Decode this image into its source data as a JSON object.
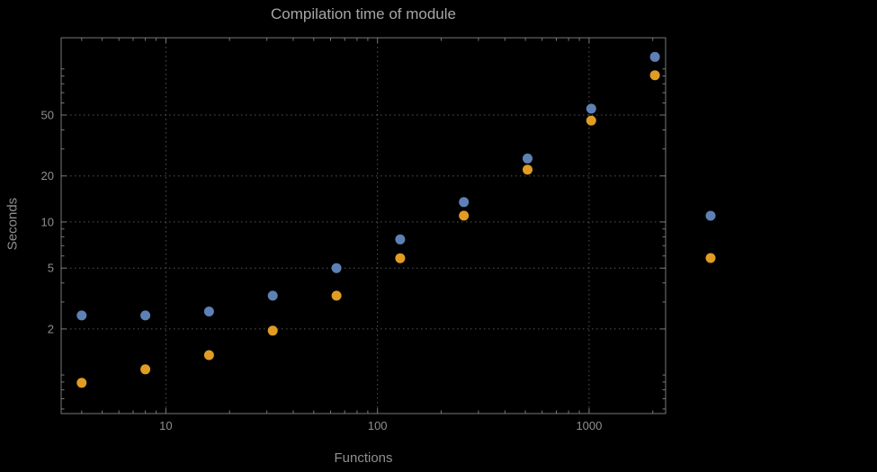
{
  "chart_data": {
    "type": "scatter",
    "title": "Compilation time of module",
    "xlabel": "Functions",
    "ylabel": "Seconds",
    "xscale": "log",
    "yscale": "log",
    "xlim": [
      3.2,
      2300
    ],
    "ylim": [
      0.56,
      160
    ],
    "x_ticks": [
      10,
      100,
      1000
    ],
    "y_ticks": [
      2,
      5,
      10,
      20,
      50
    ],
    "grid": true,
    "x": [
      4,
      8,
      16,
      32,
      64,
      128,
      256,
      512,
      1024,
      2048
    ],
    "series": [
      {
        "color": "#5e81b5",
        "marker": "circle",
        "values": [
          2.45,
          2.45,
          2.6,
          3.3,
          5.0,
          7.7,
          13.5,
          26,
          55,
          120
        ]
      },
      {
        "color": "#e19c24",
        "marker": "circle",
        "values": [
          0.89,
          1.09,
          1.35,
          1.95,
          3.3,
          5.8,
          11,
          22,
          46,
          91
        ]
      }
    ],
    "legend": {
      "position": "right-outside",
      "labels_visible": false,
      "entries": [
        {
          "color": "#5e81b5"
        },
        {
          "color": "#e19c24"
        }
      ]
    }
  },
  "colors": {
    "background": "#000000",
    "frame": "#787878",
    "gridlines": "#565656",
    "text": "#8f8f8f",
    "title_text": "#a6a6a6",
    "series_blue": "#5e81b5",
    "series_orange": "#e19c24"
  }
}
